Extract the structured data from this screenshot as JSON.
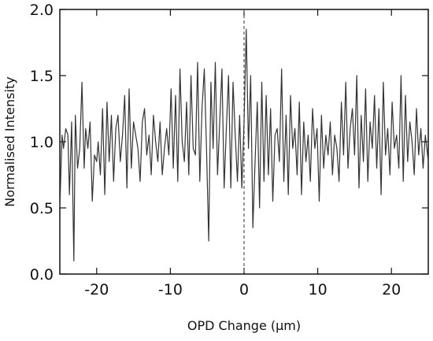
{
  "chart_data": {
    "type": "line",
    "title": "",
    "xlabel": "OPD Change (μm)",
    "ylabel": "Normalised Intensity",
    "xlim": [
      -25,
      25
    ],
    "ylim": [
      0.0,
      2.0
    ],
    "xticks": [
      -20,
      -10,
      0,
      10,
      20
    ],
    "xtick_labels": [
      "-20",
      "-10",
      "0",
      "10",
      "20"
    ],
    "yticks": [
      0.0,
      0.5,
      1.0,
      1.5,
      2.0
    ],
    "ytick_labels": [
      "0.0",
      "0.5",
      "1.0",
      "1.5",
      "2.0"
    ],
    "grid": false,
    "legend": "none",
    "reference_line": {
      "x": 0,
      "style": "dashed"
    },
    "line_color": "#333333",
    "series": [
      {
        "x": [
          -25.0,
          -24.7,
          -24.5,
          -24.2,
          -23.9,
          -23.7,
          -23.4,
          -23.1,
          -22.9,
          -22.6,
          -22.3,
          -22.0,
          -21.7,
          -21.5,
          -21.2,
          -20.9,
          -20.6,
          -20.3,
          -20.0,
          -19.8,
          -19.5,
          -19.2,
          -18.9,
          -18.6,
          -18.3,
          -18.0,
          -17.7,
          -17.4,
          -17.1,
          -16.8,
          -16.5,
          -16.2,
          -15.9,
          -15.6,
          -15.3,
          -15.0,
          -14.7,
          -14.4,
          -14.1,
          -13.8,
          -13.5,
          -13.2,
          -12.9,
          -12.6,
          -12.3,
          -12.0,
          -11.7,
          -11.4,
          -11.1,
          -10.8,
          -10.5,
          -10.2,
          -9.9,
          -9.6,
          -9.3,
          -9.0,
          -8.7,
          -8.4,
          -8.1,
          -7.8,
          -7.5,
          -7.2,
          -6.9,
          -6.6,
          -6.3,
          -6.0,
          -5.7,
          -5.4,
          -5.1,
          -4.8,
          -4.5,
          -4.2,
          -3.9,
          -3.6,
          -3.3,
          -3.0,
          -2.7,
          -2.4,
          -2.1,
          -1.8,
          -1.5,
          -1.2,
          -0.9,
          -0.6,
          -0.3,
          0.0,
          0.3,
          0.6,
          0.9,
          1.2,
          1.5,
          1.8,
          2.1,
          2.4,
          2.7,
          3.0,
          3.3,
          3.6,
          3.9,
          4.2,
          4.5,
          4.8,
          5.1,
          5.4,
          5.7,
          6.0,
          6.3,
          6.6,
          6.9,
          7.2,
          7.5,
          7.8,
          8.1,
          8.4,
          8.7,
          9.0,
          9.3,
          9.6,
          9.9,
          10.2,
          10.5,
          10.8,
          11.1,
          11.4,
          11.7,
          12.0,
          12.3,
          12.6,
          12.9,
          13.2,
          13.5,
          13.8,
          14.1,
          14.4,
          14.7,
          15.0,
          15.3,
          15.6,
          15.9,
          16.2,
          16.5,
          16.8,
          17.1,
          17.4,
          17.7,
          18.0,
          18.3,
          18.6,
          18.9,
          19.2,
          19.5,
          19.8,
          20.1,
          20.4,
          20.7,
          21.0,
          21.3,
          21.6,
          21.9,
          22.2,
          22.5,
          22.8,
          23.1,
          23.4,
          23.7,
          24.0,
          24.3,
          24.6,
          25.0
        ],
        "y": [
          0.5,
          1.05,
          0.95,
          1.1,
          1.05,
          0.6,
          1.15,
          0.1,
          1.2,
          0.8,
          0.95,
          1.45,
          0.8,
          1.1,
          0.95,
          1.15,
          0.55,
          0.9,
          0.85,
          1.0,
          0.75,
          1.25,
          0.6,
          1.3,
          0.85,
          1.2,
          0.7,
          1.1,
          1.2,
          0.85,
          1.05,
          1.35,
          0.65,
          1.4,
          0.8,
          1.15,
          1.05,
          0.95,
          0.7,
          1.15,
          1.25,
          0.9,
          1.05,
          0.75,
          1.2,
          1.0,
          0.85,
          1.15,
          0.75,
          0.95,
          1.1,
          0.9,
          1.4,
          0.8,
          1.35,
          0.7,
          1.55,
          1.0,
          0.85,
          1.3,
          0.75,
          1.5,
          0.95,
          0.9,
          1.6,
          0.7,
          1.25,
          1.55,
          0.95,
          0.25,
          1.45,
          0.95,
          1.6,
          0.75,
          1.15,
          1.55,
          0.65,
          1.1,
          1.5,
          0.65,
          1.45,
          1.05,
          0.7,
          1.2,
          0.65,
          1.15,
          1.85,
          0.95,
          1.5,
          0.35,
          0.85,
          1.3,
          0.5,
          1.45,
          0.7,
          1.35,
          0.75,
          1.25,
          0.55,
          1.05,
          1.1,
          0.85,
          1.55,
          0.7,
          1.2,
          0.6,
          1.35,
          0.95,
          1.1,
          0.75,
          1.3,
          0.6,
          1.15,
          0.85,
          1.05,
          0.7,
          1.25,
          0.95,
          1.1,
          0.55,
          1.2,
          0.8,
          1.05,
          0.9,
          1.15,
          0.75,
          1.05,
          0.95,
          0.7,
          1.3,
          0.9,
          1.45,
          0.8,
          1.1,
          1.25,
          0.9,
          1.5,
          0.65,
          1.2,
          0.85,
          1.4,
          0.7,
          1.15,
          0.95,
          1.35,
          0.8,
          1.25,
          0.6,
          1.45,
          0.9,
          1.1,
          0.75,
          1.3,
          0.95,
          1.05,
          0.8,
          1.5,
          0.7,
          1.35,
          0.85,
          1.15,
          1.0,
          0.75,
          1.25,
          0.9,
          1.1,
          0.8,
          1.05,
          0.85
        ]
      }
    ]
  }
}
